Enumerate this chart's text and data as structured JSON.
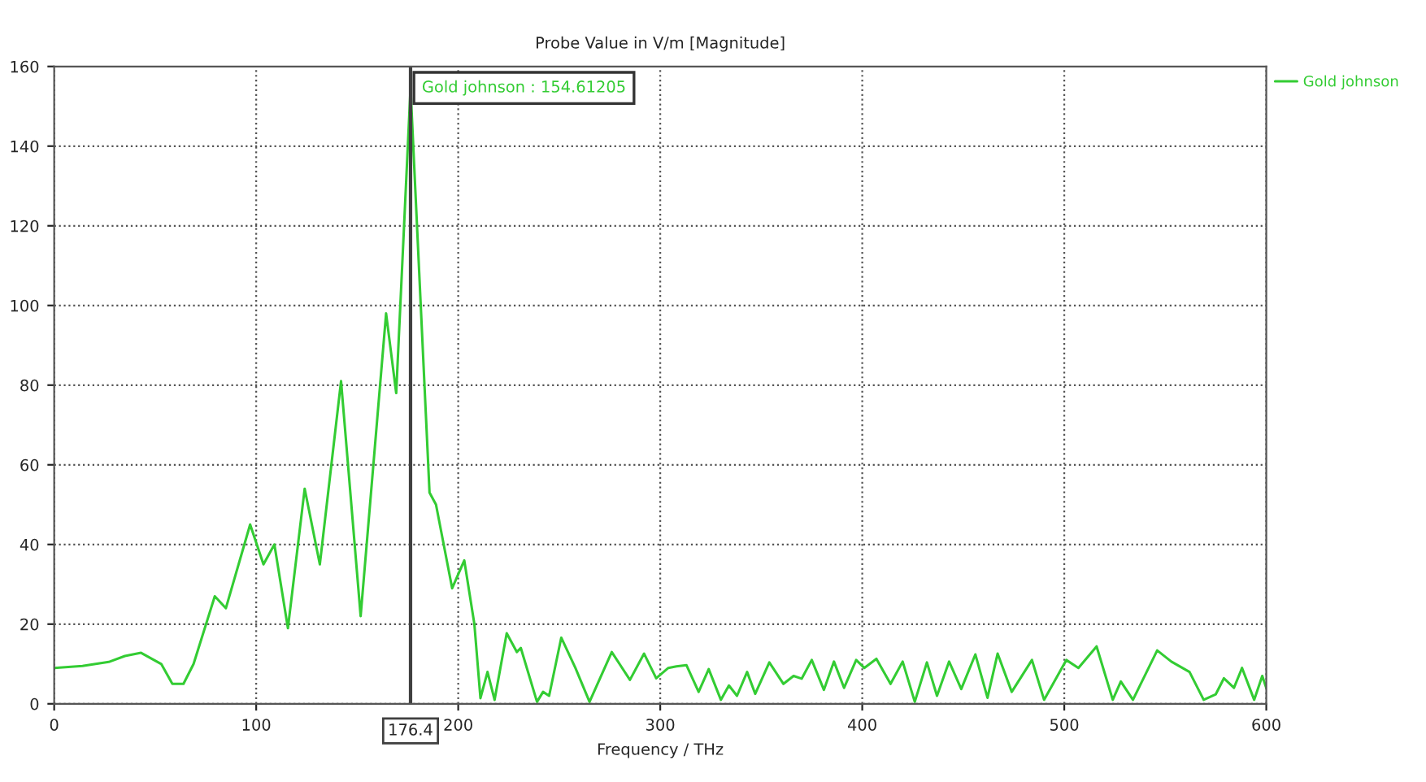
{
  "chart_data": {
    "type": "line",
    "title": "Probe Value in V/m [Magnitude]",
    "xlabel": "Frequency / THz",
    "xlim": [
      0,
      600
    ],
    "xticks": [
      0,
      100,
      200,
      300,
      400,
      500,
      600
    ],
    "ylim": [
      0,
      160
    ],
    "yticks": [
      0,
      20,
      40,
      60,
      80,
      100,
      120,
      140,
      160
    ],
    "grid": true,
    "legend": "top right",
    "marker": "none",
    "line_style": "solid",
    "ref_lines": [
      {
        "axis": "x",
        "value": 176.4,
        "label": "176.4",
        "color": "#404040",
        "line_style": "solid"
      }
    ],
    "annotations": [
      {
        "text": "Gold johnson : 154.61205",
        "x": 176.4,
        "y": 154.61205
      }
    ],
    "series": [
      {
        "name": "Gold johnson",
        "color": "#33cc33",
        "x": [
          0,
          14,
          27,
          35,
          43,
          53,
          58.5,
          64,
          69,
          79.5,
          85,
          97,
          103.6,
          109,
          115.7,
          124,
          131.5,
          142,
          151.7,
          164.3,
          169.3,
          176.4,
          185.8,
          189,
          197,
          203,
          208,
          211,
          214.5,
          218,
          224,
          229,
          231,
          239,
          242,
          245,
          251,
          258,
          265,
          276,
          285,
          292,
          298,
          304,
          308,
          313,
          319,
          324,
          330,
          334,
          338,
          343,
          347,
          354,
          361,
          366,
          370,
          375,
          381,
          386,
          391,
          397,
          401,
          407,
          414,
          420,
          426,
          432,
          437,
          443,
          449,
          456,
          462,
          467,
          474,
          484,
          490,
          501,
          507,
          516,
          524,
          528,
          534,
          546,
          553,
          562,
          569,
          575,
          579,
          584,
          588,
          594,
          598,
          600
        ],
        "values": [
          9,
          9.5,
          10.5,
          12,
          12.8,
          10,
          5,
          5,
          10,
          27,
          24,
          45,
          35,
          40,
          19,
          54,
          35,
          81,
          22,
          98,
          78,
          154.61205,
          53,
          50,
          29,
          36,
          20,
          1.4,
          8,
          1,
          17.7,
          13,
          14,
          0.5,
          3,
          2,
          16.6,
          9,
          0.5,
          13,
          6,
          12.6,
          6.4,
          9,
          9.4,
          9.7,
          3,
          8.7,
          1,
          4.6,
          2,
          8,
          2.5,
          10.4,
          5,
          7,
          6.3,
          11,
          3.5,
          10.6,
          4,
          11,
          9,
          11.3,
          5,
          10.6,
          0.5,
          10.4,
          2,
          10.6,
          3.7,
          12.4,
          1.5,
          12.6,
          3,
          11,
          1,
          11,
          9,
          14.4,
          1,
          5.6,
          1,
          13.4,
          10.6,
          8,
          1,
          2.4,
          6.4,
          4,
          9,
          1,
          7,
          4
        ]
      }
    ]
  }
}
